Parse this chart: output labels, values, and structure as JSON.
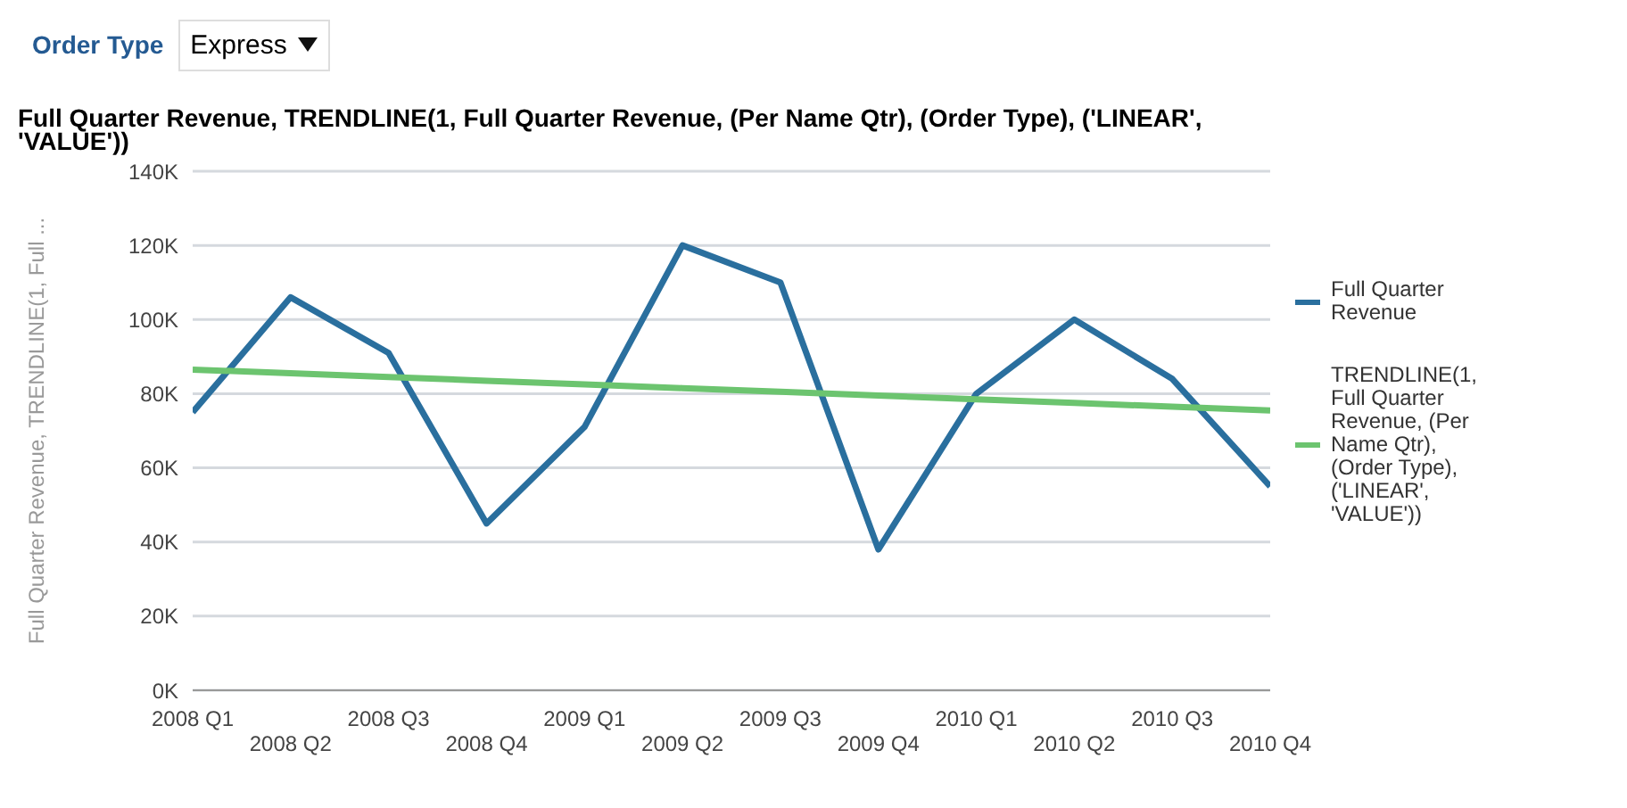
{
  "chart_data": {
    "type": "line",
    "title": "Full Quarter Revenue, TRENDLINE(1, Full Quarter Revenue, (Per Name Qtr), (Order Type), ('LINEAR', 'VALUE'))",
    "ylabel": "Full Quarter Revenue, TRENDLINE(1, Full ...",
    "annotations": [
      "Order Type",
      "Express"
    ],
    "categories": [
      "2008 Q1",
      "2008 Q2",
      "2008 Q3",
      "2008 Q4",
      "2009 Q1",
      "2009 Q2",
      "2009 Q3",
      "2009 Q4",
      "2010 Q1",
      "2010 Q2",
      "2010 Q3",
      "2010 Q4"
    ],
    "series": [
      {
        "name": "Full Quarter Revenue",
        "color": "#2a6f9e",
        "values": [
          75000,
          106000,
          91000,
          45000,
          71000,
          120000,
          110000,
          38000,
          80000,
          100000,
          84000,
          55000
        ]
      },
      {
        "name": "TRENDLINE(1, Full Quarter Revenue, (Per Name Qtr), (Order Type), ('LINEAR', 'VALUE'))",
        "color": "#6cc46f",
        "values": [
          86500,
          85500,
          84500,
          83500,
          82500,
          81500,
          80500,
          79500,
          78500,
          77500,
          76500,
          75500
        ]
      }
    ],
    "ylim": [
      0,
      140000
    ],
    "yticks": [
      {
        "value": 0,
        "label": "0K"
      },
      {
        "value": 20000,
        "label": "20K"
      },
      {
        "value": 40000,
        "label": "40K"
      },
      {
        "value": 60000,
        "label": "60K"
      },
      {
        "value": 80000,
        "label": "80K"
      },
      {
        "value": 100000,
        "label": "100K"
      },
      {
        "value": 120000,
        "label": "120K"
      },
      {
        "value": 140000,
        "label": "140K"
      }
    ],
    "grid": "y",
    "legend": "right",
    "marker": "none",
    "line_style": "solid"
  }
}
